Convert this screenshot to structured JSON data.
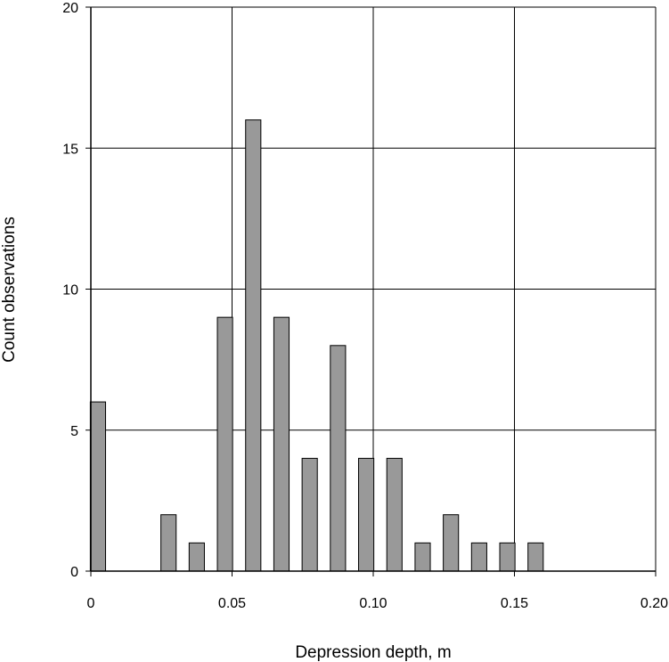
{
  "chart_data": {
    "type": "bar",
    "title": "",
    "xlabel": "Depression depth, m",
    "ylabel": "Count observations",
    "xlim": [
      0,
      0.2
    ],
    "ylim": [
      0,
      20
    ],
    "grid": true,
    "x_ticks": [
      0,
      0.05,
      0.1,
      0.15,
      0.2
    ],
    "x_tick_labels": [
      "0",
      "0.05",
      "0.10",
      "0.15",
      "0.20"
    ],
    "y_ticks": [
      0,
      5,
      10,
      15,
      20
    ],
    "y_tick_labels": [
      "0",
      "5",
      "10",
      "15",
      "20"
    ],
    "x": [
      0.0025,
      0.0275,
      0.0375,
      0.0475,
      0.0575,
      0.0675,
      0.0775,
      0.0875,
      0.0975,
      0.1075,
      0.1175,
      0.1275,
      0.1375,
      0.1475,
      0.1575
    ],
    "values": [
      6,
      2,
      1,
      9,
      16,
      9,
      4,
      8,
      4,
      4,
      1,
      2,
      1,
      1,
      1
    ],
    "bar_color": "#999999"
  }
}
